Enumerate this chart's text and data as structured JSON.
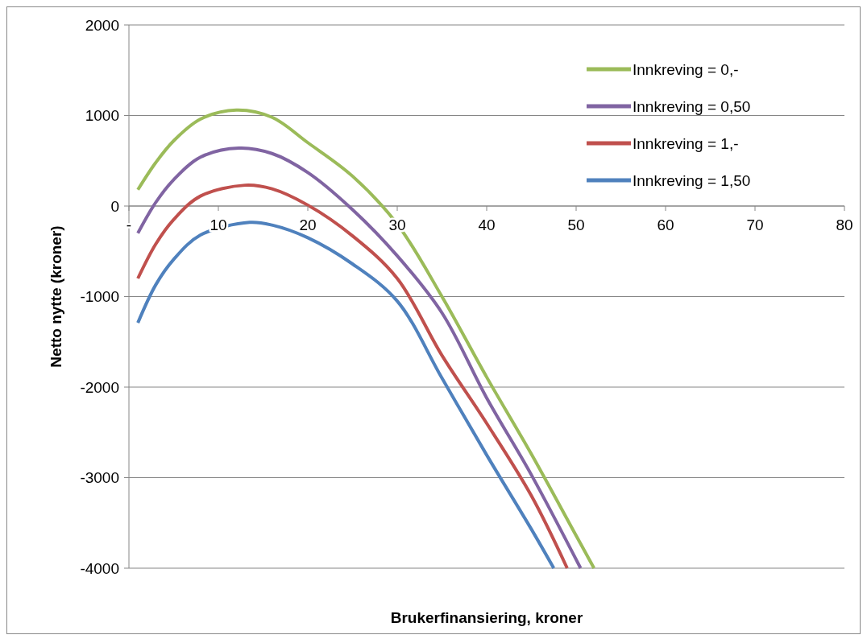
{
  "chart_data": {
    "type": "line",
    "xlabel": "Brukerfinansiering, kroner",
    "ylabel": "Netto nytte (kroner)",
    "xlim": [
      0,
      80
    ],
    "xticks": [
      {
        "value": 0,
        "label": "-"
      },
      10,
      20,
      30,
      40,
      50,
      60,
      70,
      80
    ],
    "ylim": [
      -4000,
      2000
    ],
    "yticks": [
      -4000,
      -3000,
      -2000,
      -1000,
      0,
      1000,
      2000
    ],
    "grid": "y",
    "legend": "top right",
    "line_style": "solid",
    "series": [
      {
        "name": "Innkreving = 0,-",
        "color": "#9bbb59",
        "x": [
          1,
          3,
          5,
          8,
          12,
          16,
          20,
          25,
          30,
          35,
          40,
          45,
          50,
          52
        ],
        "values": [
          180,
          480,
          720,
          960,
          1060,
          980,
          700,
          330,
          -200,
          -1000,
          -1890,
          -2740,
          -3640,
          -4000
        ]
      },
      {
        "name": "Innkreving = 0,50",
        "color": "#8064a2",
        "x": [
          1,
          3,
          5,
          8,
          12.3,
          16,
          20,
          25,
          30,
          35,
          40,
          45,
          50.5
        ],
        "values": [
          -300,
          40,
          290,
          540,
          640,
          580,
          370,
          -40,
          -550,
          -1180,
          -2120,
          -2970,
          -4000
        ]
      },
      {
        "name": "Innkreving = 1,-",
        "color": "#c0504d",
        "x": [
          1,
          3,
          5,
          8,
          13,
          16,
          20,
          25,
          30,
          35,
          40,
          45,
          49
        ],
        "values": [
          -800,
          -420,
          -150,
          110,
          230,
          190,
          10,
          -330,
          -800,
          -1650,
          -2400,
          -3200,
          -4000
        ]
      },
      {
        "name": "Innkreving = 1,50",
        "color": "#4f81bd",
        "x": [
          1,
          3,
          5,
          8,
          13.5,
          16,
          20,
          25,
          30,
          35,
          40,
          45,
          47.5
        ],
        "values": [
          -1290,
          -870,
          -590,
          -320,
          -180,
          -210,
          -350,
          -640,
          -1050,
          -1900,
          -2750,
          -3570,
          -4000
        ]
      }
    ]
  }
}
